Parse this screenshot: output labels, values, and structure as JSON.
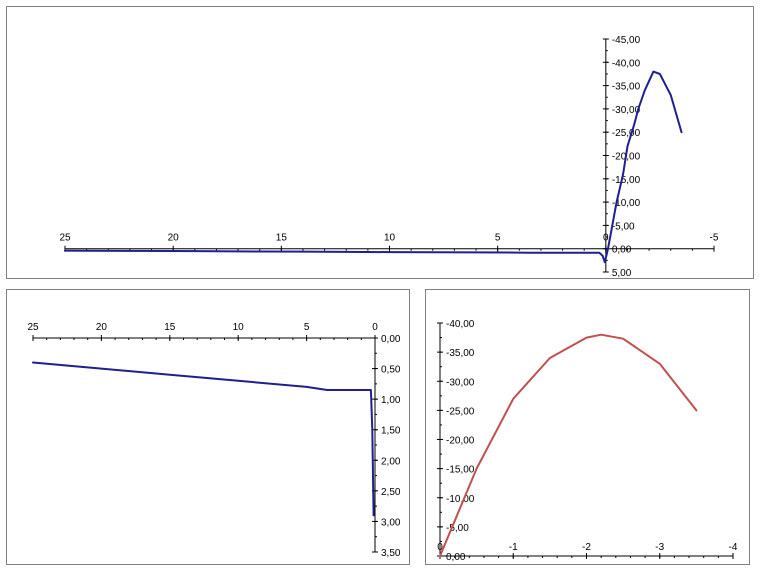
{
  "chart_data": [
    {
      "type": "line",
      "x_reversed": true,
      "y_reversed": true,
      "xlim": [
        25,
        -5
      ],
      "ylim": [
        5,
        -45
      ],
      "x_ticks": [
        "25",
        "20",
        "15",
        "10",
        "5",
        "0",
        "-5"
      ],
      "y_ticks": [
        "-45,00",
        "-40,00",
        "-35,00",
        "-30,00",
        "-25,00",
        "-20,00",
        "-15,00",
        "-10,00",
        "-5,00",
        "0,00",
        "5,00"
      ],
      "line_color": "#1f1f8f",
      "series": [
        {
          "x": [
            25,
            24,
            22,
            20,
            18,
            16,
            14,
            12,
            10,
            8,
            6,
            4,
            3.5,
            2,
            0.3,
            0.15,
            0.05,
            -0.1,
            -0.3,
            -0.5,
            -0.8,
            -1.0,
            -1.3,
            -1.5,
            -1.8,
            -2.0,
            -2.2,
            -2.5,
            -3.0,
            -3.5
          ],
          "y": [
            0.4,
            0.42,
            0.47,
            0.5,
            0.55,
            0.6,
            0.63,
            0.68,
            0.72,
            0.76,
            0.8,
            0.84,
            0.85,
            0.85,
            0.85,
            1.5,
            2.9,
            0.0,
            -5.0,
            -10.0,
            -16.0,
            -22.0,
            -26.5,
            -30.0,
            -34.0,
            -36.0,
            -38.0,
            -37.5,
            -33.0,
            -25.0
          ]
        }
      ]
    },
    {
      "type": "line",
      "x_reversed": true,
      "y_reversed": true,
      "xlim": [
        25,
        0
      ],
      "ylim": [
        3.5,
        0
      ],
      "x_ticks": [
        "25",
        "20",
        "15",
        "10",
        "5",
        "0"
      ],
      "y_ticks": [
        "0,00",
        "0,50",
        "1,00",
        "1,50",
        "2,00",
        "2,50",
        "3,00",
        "3,50"
      ],
      "line_color": "#1f1f8f",
      "series": [
        {
          "x": [
            25,
            20,
            15,
            10,
            5,
            3.5,
            2.5,
            1.5,
            0.3,
            0.2,
            0.1
          ],
          "y": [
            0.4,
            0.5,
            0.6,
            0.7,
            0.8,
            0.85,
            0.85,
            0.85,
            0.85,
            1.5,
            2.9
          ]
        }
      ]
    },
    {
      "type": "line",
      "x_reversed": true,
      "y_reversed": true,
      "xlim": [
        0,
        -4
      ],
      "ylim": [
        0,
        -40
      ],
      "x_ticks": [
        "0",
        "-1",
        "-2",
        "-3",
        "-4"
      ],
      "y_ticks": [
        "-40,00",
        "-35,00",
        "-30,00",
        "-25,00",
        "-20,00",
        "-15,00",
        "-10,00",
        "-5,00",
        "0,00"
      ],
      "line_color": "#c0504d",
      "series": [
        {
          "x": [
            0,
            -0.5,
            -1.0,
            -1.5,
            -2.0,
            -2.2,
            -2.5,
            -3.0,
            -3.5
          ],
          "y": [
            0,
            -15.0,
            -27.0,
            -34.0,
            -37.5,
            -38.0,
            -37.3,
            -33.0,
            -25.0
          ]
        }
      ]
    }
  ]
}
